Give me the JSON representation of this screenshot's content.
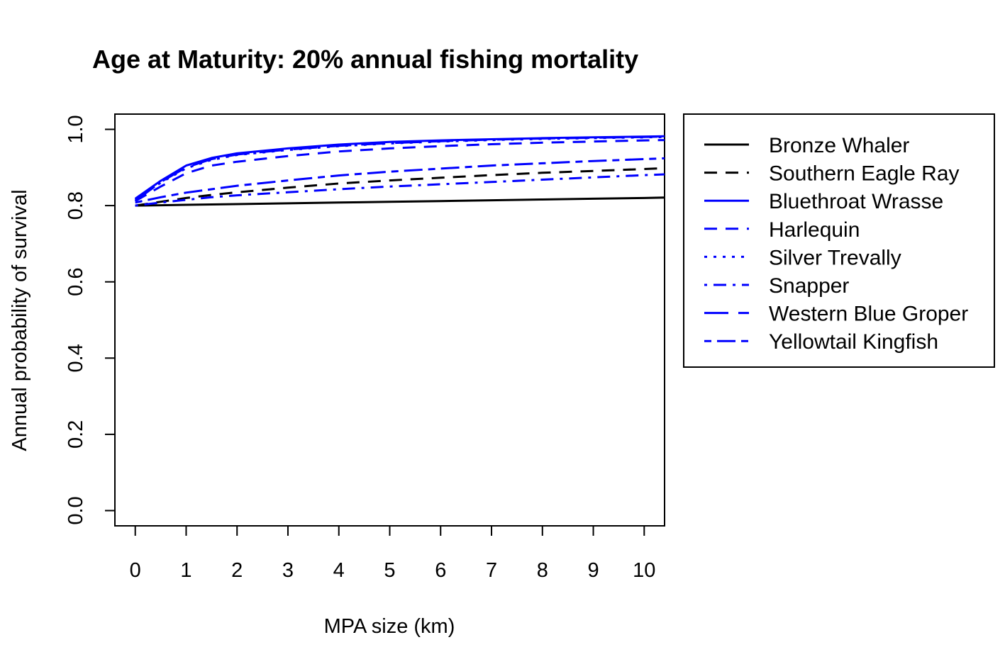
{
  "chart_data": {
    "type": "line",
    "title": "Age at Maturity: 20% annual fishing mortality",
    "xlabel": "MPA size (km)",
    "ylabel": "Annual probability of survival",
    "xlim": [
      -0.4,
      10.4
    ],
    "ylim": [
      -0.04,
      1.04
    ],
    "xticks": [
      "0",
      "1",
      "2",
      "3",
      "4",
      "5",
      "6",
      "7",
      "8",
      "9",
      "10"
    ],
    "yticks": [
      "0.0",
      "0.2",
      "0.4",
      "0.6",
      "0.8",
      "1.0"
    ],
    "legend_position": "right-outside",
    "series": [
      {
        "name": "Bronze Whaler",
        "color": "#000000",
        "dash": "solid",
        "x": [
          0,
          0.5,
          1,
          1.5,
          2,
          3,
          4,
          5,
          6,
          7,
          8,
          9,
          10,
          10.4
        ],
        "y": [
          0.8,
          0.801,
          0.802,
          0.803,
          0.804,
          0.806,
          0.808,
          0.81,
          0.812,
          0.814,
          0.816,
          0.818,
          0.82,
          0.821
        ]
      },
      {
        "name": "Southern Eagle Ray",
        "color": "#000000",
        "dash": "dashed",
        "x": [
          0,
          0.5,
          1,
          1.5,
          2,
          3,
          4,
          5,
          6,
          7,
          8,
          9,
          10,
          10.4
        ],
        "y": [
          0.8,
          0.81,
          0.82,
          0.828,
          0.835,
          0.847,
          0.858,
          0.866,
          0.873,
          0.88,
          0.886,
          0.891,
          0.896,
          0.898
        ]
      },
      {
        "name": "Bluethroat Wrasse",
        "color": "#0000ff",
        "dash": "solid",
        "x": [
          0,
          0.5,
          1,
          1.5,
          2,
          3,
          4,
          5,
          6,
          7,
          8,
          9,
          10,
          10.4
        ],
        "y": [
          0.818,
          0.865,
          0.905,
          0.925,
          0.937,
          0.95,
          0.96,
          0.967,
          0.971,
          0.974,
          0.977,
          0.979,
          0.981,
          0.982
        ]
      },
      {
        "name": "Harlequin",
        "color": "#0000ff",
        "dash": "dashed",
        "x": [
          0,
          0.5,
          1,
          1.5,
          2,
          3,
          4,
          5,
          6,
          7,
          8,
          9,
          10,
          10.4
        ],
        "y": [
          0.812,
          0.85,
          0.885,
          0.905,
          0.915,
          0.93,
          0.942,
          0.95,
          0.956,
          0.961,
          0.965,
          0.968,
          0.971,
          0.972
        ]
      },
      {
        "name": "Silver Trevally",
        "color": "#0000ff",
        "dash": "dotted",
        "x": [
          0,
          0.5,
          1,
          1.5,
          2,
          3,
          4,
          5,
          6,
          7,
          8,
          9,
          10,
          10.4
        ],
        "y": [
          0.815,
          0.86,
          0.898,
          0.92,
          0.933,
          0.946,
          0.956,
          0.963,
          0.968,
          0.972,
          0.975,
          0.977,
          0.979,
          0.98
        ]
      },
      {
        "name": "Snapper",
        "color": "#0000ff",
        "dash": "dotdash",
        "x": [
          0,
          0.5,
          1,
          1.5,
          2,
          3,
          4,
          5,
          6,
          7,
          8,
          9,
          10,
          10.4
        ],
        "y": [
          0.8,
          0.808,
          0.815,
          0.822,
          0.827,
          0.835,
          0.843,
          0.85,
          0.856,
          0.862,
          0.868,
          0.874,
          0.88,
          0.882
        ]
      },
      {
        "name": "Western Blue Groper",
        "color": "#0000ff",
        "dash": "longdash",
        "x": [
          0,
          0.5,
          1,
          1.5,
          2,
          3,
          4,
          5,
          6,
          7,
          8,
          9,
          10,
          10.4
        ],
        "y": [
          0.812,
          0.862,
          0.9,
          0.922,
          0.934,
          0.947,
          0.957,
          0.964,
          0.969,
          0.973,
          0.976,
          0.978,
          0.98,
          0.981
        ]
      },
      {
        "name": "Yellowtail Kingfish",
        "color": "#0000ff",
        "dash": "twodash",
        "x": [
          0,
          0.5,
          1,
          1.5,
          2,
          3,
          4,
          5,
          6,
          7,
          8,
          9,
          10,
          10.4
        ],
        "y": [
          0.808,
          0.822,
          0.834,
          0.843,
          0.852,
          0.866,
          0.879,
          0.889,
          0.897,
          0.905,
          0.911,
          0.917,
          0.922,
          0.924
        ]
      }
    ]
  }
}
